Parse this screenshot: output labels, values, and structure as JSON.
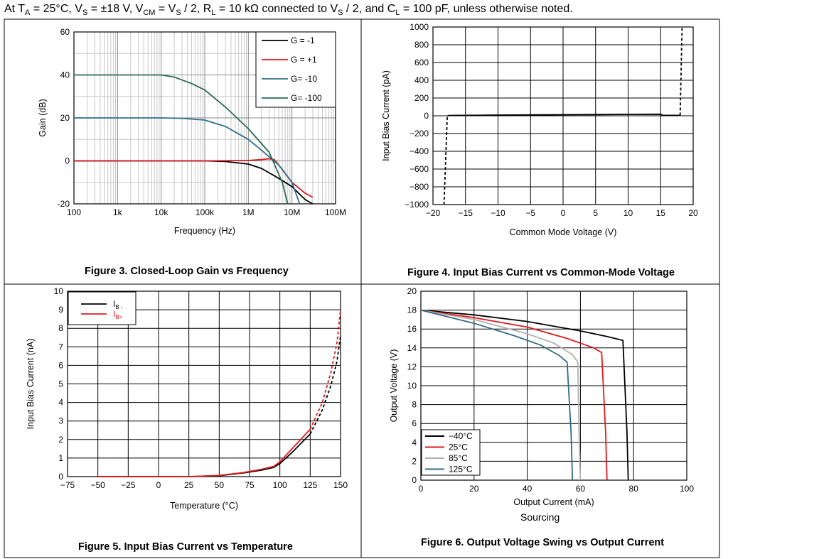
{
  "header": {
    "p1": "At T",
    "s1": "A",
    "p2": " = 25°C, V",
    "s2": "S",
    "p3": " = ±18 V, V",
    "s3": "CM",
    "p4": " = V",
    "s4": "S",
    "p5": " / 2, R",
    "s5": "L",
    "p6": " = 10 kΩ connected to V",
    "s6": "S",
    "p7": " / 2, and C",
    "s7": "L",
    "p8": " = 100 pF, unless otherwise noted."
  },
  "colors": {
    "black": "#000000",
    "red": "#e0191e",
    "blue": "#2e6f8e",
    "green": "#2a6b4f",
    "gray": "#b0b0b0",
    "teal": "#2f6b84"
  },
  "chart_data": [
    {
      "id": "fig3",
      "type": "line",
      "title": "Figure 3. Closed-Loop Gain vs Frequency",
      "xlabel": "Frequency (Hz)",
      "ylabel": "Gain (dB)",
      "xscale": "log",
      "xlim": [
        100,
        100000000
      ],
      "ylim": [
        -20,
        60
      ],
      "xtick_labels": [
        "100",
        "1k",
        "10k",
        "100k",
        "1M",
        "10M",
        "100M"
      ],
      "ytick_labels": [
        "-20",
        "0",
        "20",
        "40",
        "60"
      ],
      "grid": true,
      "legend_position": "top-right",
      "series": [
        {
          "name": "G = -1",
          "color": "#000000",
          "x": [
            100,
            100000,
            300000,
            1000000,
            2000000,
            4000000,
            7000000,
            10000000,
            20000000,
            30000000
          ],
          "y": [
            0,
            0,
            -0.3,
            -1.5,
            -3.5,
            -7,
            -10,
            -12,
            -18,
            -20
          ]
        },
        {
          "name": "G = +1",
          "color": "#e0191e",
          "x": [
            100,
            100000,
            1000000,
            2000000,
            3000000,
            4000000,
            6000000,
            10000000,
            20000000,
            30000000
          ],
          "y": [
            0,
            0,
            0.2,
            0.6,
            1,
            0.5,
            -4,
            -10,
            -15,
            -17
          ]
        },
        {
          "name": "G= -10",
          "color": "#2e6f8e",
          "x": [
            100,
            10000,
            30000,
            100000,
            300000,
            1000000,
            2000000,
            5000000,
            10000000,
            15000000
          ],
          "y": [
            20,
            20,
            19.8,
            19,
            16,
            10,
            5,
            -2,
            -10,
            -20
          ]
        },
        {
          "name": "G= -100",
          "color": "#2a6b4f",
          "x": [
            100,
            10000,
            20000,
            50000,
            100000,
            300000,
            1000000,
            3000000,
            6000000,
            8000000
          ],
          "y": [
            40,
            40,
            39,
            36,
            33,
            25,
            15,
            4,
            -10,
            -20
          ]
        }
      ]
    },
    {
      "id": "fig4",
      "type": "line",
      "title": "Figure 4. Input Bias Current vs Common-Mode Voltage",
      "xlabel": "Common Mode Voltage (V)",
      "ylabel": "Input Bias Current (pA)",
      "xlim": [
        -20,
        20
      ],
      "ylim": [
        -1000,
        1000
      ],
      "xtick_labels": [
        "−20",
        "−15",
        "−10",
        "−5",
        "0",
        "5",
        "10",
        "15",
        "20"
      ],
      "ytick_labels": [
        "−1000",
        "−800",
        "−600",
        "−400",
        "−200",
        "0",
        "200",
        "400",
        "600",
        "800",
        "1000"
      ],
      "grid": true,
      "series": [
        {
          "name": "",
          "color": "#000000",
          "style": "solid",
          "x": [
            -17.8,
            -17.6,
            -15,
            -10,
            -5,
            0,
            5,
            10,
            15,
            15.3,
            18
          ],
          "y": [
            -5,
            3,
            5,
            8,
            10,
            12,
            14,
            16,
            18,
            5,
            5
          ]
        },
        {
          "name": "",
          "color": "#000000",
          "style": "dashed",
          "x": [
            -18.3,
            -17.8
          ],
          "y": [
            -1000,
            -5
          ]
        },
        {
          "name": "",
          "color": "#000000",
          "style": "dashed",
          "x": [
            18,
            18.3
          ],
          "y": [
            5,
            1000
          ]
        }
      ]
    },
    {
      "id": "fig5",
      "type": "line",
      "title": "Figure 5. Input Bias Current vs Temperature",
      "xlabel": "Temperature (°C)",
      "ylabel": "Input Bias Current (nA)",
      "xlim": [
        -75,
        150
      ],
      "ylim": [
        0,
        10
      ],
      "xtick_labels": [
        "−75",
        "−50",
        "−25",
        "0",
        "25",
        "50",
        "75",
        "100",
        "125",
        "150"
      ],
      "ytick_labels": [
        "0",
        "1",
        "2",
        "3",
        "4",
        "5",
        "6",
        "7",
        "8",
        "9",
        "10"
      ],
      "grid": true,
      "legend_position": "top-left",
      "series": [
        {
          "name": "IB-",
          "color": "#000000",
          "style": "solid",
          "x": [
            -50,
            0,
            25,
            50,
            70,
            85,
            95,
            100,
            110,
            125
          ],
          "y": [
            0,
            0,
            0,
            0.05,
            0.2,
            0.35,
            0.5,
            0.7,
            1.3,
            2.3
          ]
        },
        {
          "name": "IB+",
          "color": "#e0191e",
          "style": "solid",
          "x": [
            -50,
            0,
            25,
            50,
            70,
            85,
            95,
            100,
            110,
            125
          ],
          "y": [
            0,
            0,
            0,
            0.06,
            0.22,
            0.4,
            0.55,
            0.8,
            1.5,
            2.55
          ]
        },
        {
          "name": "",
          "color": "#000000",
          "style": "dashed",
          "x": [
            125,
            135,
            142,
            147,
            150
          ],
          "y": [
            2.3,
            3.6,
            4.9,
            6.2,
            7.6
          ]
        },
        {
          "name": "",
          "color": "#e0191e",
          "style": "dashed",
          "x": [
            125,
            135,
            142,
            147,
            150
          ],
          "y": [
            2.55,
            4.0,
            5.6,
            7.2,
            9.0
          ]
        }
      ],
      "legend": {
        "l1": "I",
        "l1s": "B -",
        "l2": "I",
        "l2s": "B+"
      }
    },
    {
      "id": "fig6",
      "type": "line",
      "title": "Figure 6. Output Voltage Swing vs Output Current",
      "subtitle": "Sourcing",
      "xlabel": "Output Current (mA)",
      "ylabel": "Output Voltage (V)",
      "xlim": [
        0,
        100
      ],
      "ylim": [
        0,
        20
      ],
      "xtick_labels": [
        "0",
        "20",
        "40",
        "60",
        "80",
        "100"
      ],
      "ytick_labels": [
        "0",
        "2",
        "4",
        "6",
        "8",
        "10",
        "12",
        "14",
        "16",
        "18",
        "20"
      ],
      "grid": true,
      "legend_position": "bottom-left",
      "series": [
        {
          "name": "−40°C",
          "color": "#000000",
          "x": [
            0,
            20,
            40,
            60,
            70,
            76,
            77.5,
            78
          ],
          "y": [
            18,
            17.5,
            16.8,
            15.8,
            15.2,
            14.8,
            5,
            0
          ]
        },
        {
          "name": "25°C",
          "color": "#e0191e",
          "x": [
            0,
            20,
            40,
            55,
            65,
            68,
            69.5,
            70
          ],
          "y": [
            18,
            17.2,
            16.2,
            15,
            14,
            13.5,
            5,
            0
          ]
        },
        {
          "name": "85°C",
          "color": "#b0b0b0",
          "x": [
            0,
            20,
            40,
            50,
            57,
            59,
            59.5,
            60
          ],
          "y": [
            18,
            17,
            15.5,
            14.5,
            13.3,
            12.5,
            5,
            0
          ]
        },
        {
          "name": "125°C",
          "color": "#2f6b84",
          "x": [
            0,
            20,
            35,
            45,
            52,
            55,
            56.5,
            57
          ],
          "y": [
            18,
            16.6,
            15.3,
            14.3,
            13.2,
            12.5,
            5,
            0
          ]
        }
      ]
    }
  ]
}
